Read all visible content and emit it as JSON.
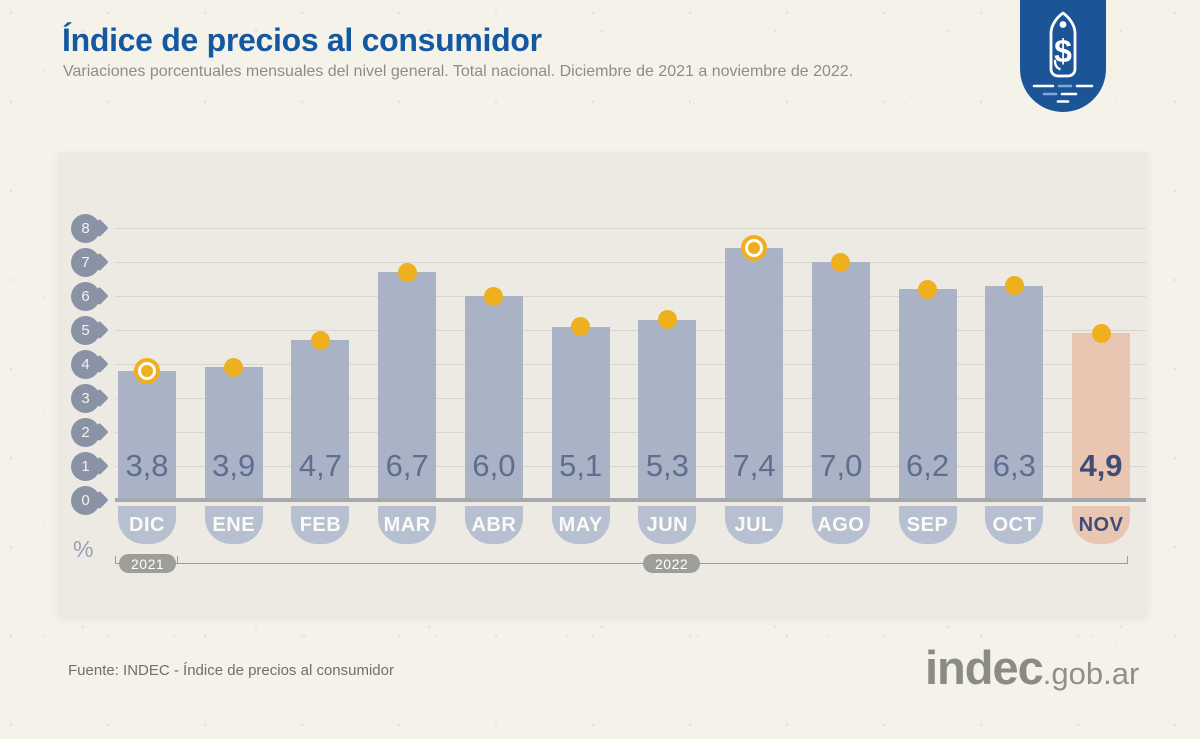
{
  "header": {
    "title": "Índice de precios al consumidor",
    "subtitle": "Variaciones porcentuales mensuales del nivel general. Total nacional. Diciembre de 2021 a noviembre de 2022."
  },
  "icon": {
    "currency_symbol": "$"
  },
  "chart_data": {
    "type": "bar",
    "title": "Índice de precios al consumidor",
    "subtitle": "Variaciones porcentuales mensuales del nivel general. Total nacional. Diciembre de 2021 a noviembre de 2022.",
    "categories": [
      "DIC",
      "ENE",
      "FEB",
      "MAR",
      "ABR",
      "MAY",
      "JUN",
      "JUL",
      "AGO",
      "SEP",
      "OCT",
      "NOV"
    ],
    "values": [
      3.8,
      3.9,
      4.7,
      6.7,
      6.0,
      5.1,
      5.3,
      7.4,
      7.0,
      6.2,
      6.3,
      4.9
    ],
    "value_labels": [
      "3,8",
      "3,9",
      "4,7",
      "6,7",
      "6,0",
      "5,1",
      "5,3",
      "7,4",
      "7,0",
      "6,2",
      "6,3",
      "4,9"
    ],
    "xlabel": "",
    "ylabel": "%",
    "ylim": [
      0,
      8
    ],
    "yticks": [
      8,
      7,
      6,
      5,
      4,
      3,
      2,
      1,
      0
    ],
    "grid": true,
    "legend": "none",
    "highlighted_category": "NOV",
    "ring_marker_categories": [
      "DIC",
      "JUL"
    ],
    "year_labels": [
      "2021",
      "2022"
    ],
    "colors": {
      "bar": "#a9b3c5",
      "bar_highlight": "#e9c6b2",
      "marker": "#eeb01e",
      "value_text": "#5d6e90",
      "value_text_highlight": "#3f4d79",
      "month_badge": "#b7c0d1",
      "accent_blue": "#1c5597",
      "title_blue": "#1558a2"
    }
  },
  "footer": {
    "source": "Fuente: INDEC - Índice de precios al consumidor",
    "logo_main": "indec",
    "logo_suffix": ".gob.ar"
  }
}
